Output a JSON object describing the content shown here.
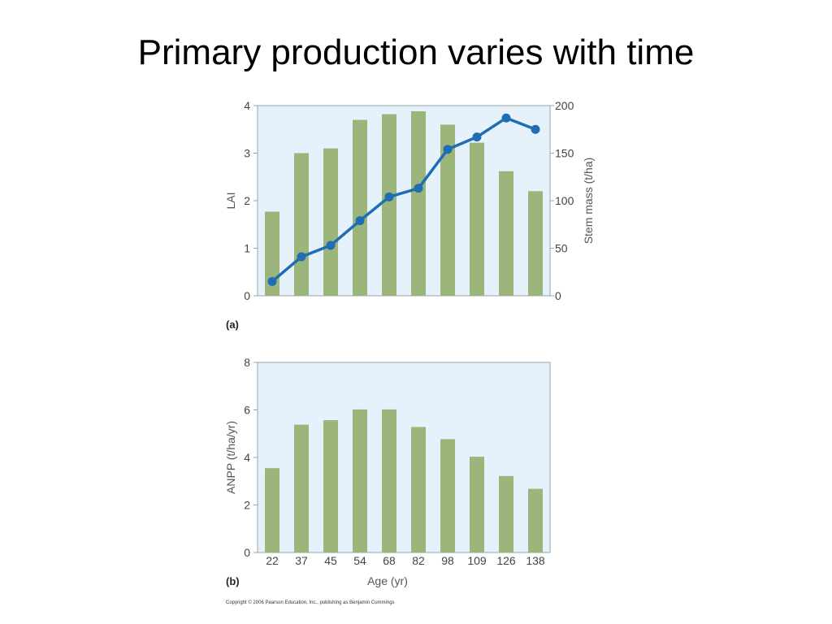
{
  "slide": {
    "title": "Primary production varies with time",
    "copyright": "Copyright © 2006 Pearson Education, Inc., publishing as Benjamin Cummings"
  },
  "colors": {
    "bar": "#9cb57b",
    "line": "#1f6db3",
    "plot_background": "#e6f2fb",
    "frame": "#9aa3a8"
  },
  "chart_data": [
    {
      "type": "bar",
      "panel_label": "(a)",
      "categories": [
        "22",
        "37",
        "45",
        "54",
        "68",
        "82",
        "98",
        "109",
        "126",
        "138"
      ],
      "ylabel": "LAI",
      "ylim": [
        0,
        4
      ],
      "yticks": [
        0,
        1,
        2,
        3,
        4
      ],
      "series": [
        {
          "name": "",
          "type": "bar",
          "axis": "left",
          "values": [
            1.77,
            3.0,
            3.1,
            3.7,
            3.82,
            3.88,
            3.6,
            3.22,
            2.62,
            2.2
          ]
        },
        {
          "name": "",
          "type": "line",
          "axis": "right",
          "values": [
            15,
            41,
            53,
            79,
            104,
            113,
            154,
            167,
            187,
            175
          ]
        }
      ],
      "y2label": "Stem mass (t/ha)",
      "y2lim": [
        0,
        200
      ],
      "y2ticks": [
        0,
        50,
        100,
        150,
        200
      ],
      "grid": false
    },
    {
      "type": "bar",
      "panel_label": "(b)",
      "categories": [
        "22",
        "37",
        "45",
        "54",
        "68",
        "82",
        "98",
        "109",
        "126",
        "138"
      ],
      "xlabel": "Age (yr)",
      "ylabel": "ANPP (t/ha/yr)",
      "ylim": [
        0,
        8
      ],
      "yticks": [
        0,
        2,
        4,
        6,
        8
      ],
      "series": [
        {
          "name": "",
          "type": "bar",
          "axis": "left",
          "values": [
            3.55,
            5.38,
            5.57,
            6.02,
            6.02,
            5.28,
            4.77,
            4.03,
            3.22,
            2.68
          ]
        }
      ],
      "grid": false
    }
  ]
}
